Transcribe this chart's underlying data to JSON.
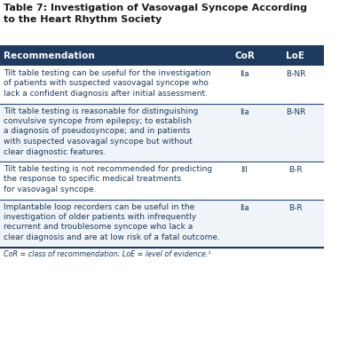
{
  "title_line1": "Table 7: Investigation of Vasovagal Syncope According",
  "title_line2": "to the Heart Rhythm Society",
  "title_color": "#1a1a1a",
  "background_color": "#ffffff",
  "header_bg": "#1e3a5f",
  "header_text_color": "#ffffff",
  "header_labels": [
    "Recommendation",
    "CoR",
    "LoE"
  ],
  "row_separator_color": "#2a4a7f",
  "footer_text": "CoR = class of recommendation; LoE = level of evidence.¹",
  "rows": [
    {
      "rec_lines": [
        "Tilt table testing can be useful for the investigation",
        "of patients with suspected vasovagal syncope who",
        "lack a confident diagnosis after initial assessment."
      ],
      "cor": "IIa",
      "loe": "B-NR"
    },
    {
      "rec_lines": [
        "Tilt table testing is reasonable for distinguishing",
        "convulsive syncope from epilepsy; to establish",
        "a diagnosis of pseudosyncope; and in patients",
        "with suspected vasovagal syncope but without",
        "clear diagnostic features."
      ],
      "cor": "IIa",
      "loe": "B-NR"
    },
    {
      "rec_lines": [
        "Tilt table testing is not recommended for predicting",
        "the response to specific medical treatments",
        "for vasovagal syncope."
      ],
      "cor": "III",
      "loe": "B-R"
    },
    {
      "rec_lines": [
        "Implantable loop recorders can be useful in the",
        "investigation of older patients with infrequently",
        "recurrent and troublesome syncope who lack a",
        "clear diagnosis and are at low risk of a fatal outcome."
      ],
      "cor": "IIa",
      "loe": "B-R"
    }
  ],
  "text_color": "#1a3a5c",
  "separator_line_color": "#1e3a5f",
  "title_fontsize": 8.0,
  "header_fontsize": 7.5,
  "body_fontsize": 6.5,
  "footer_fontsize": 5.8
}
